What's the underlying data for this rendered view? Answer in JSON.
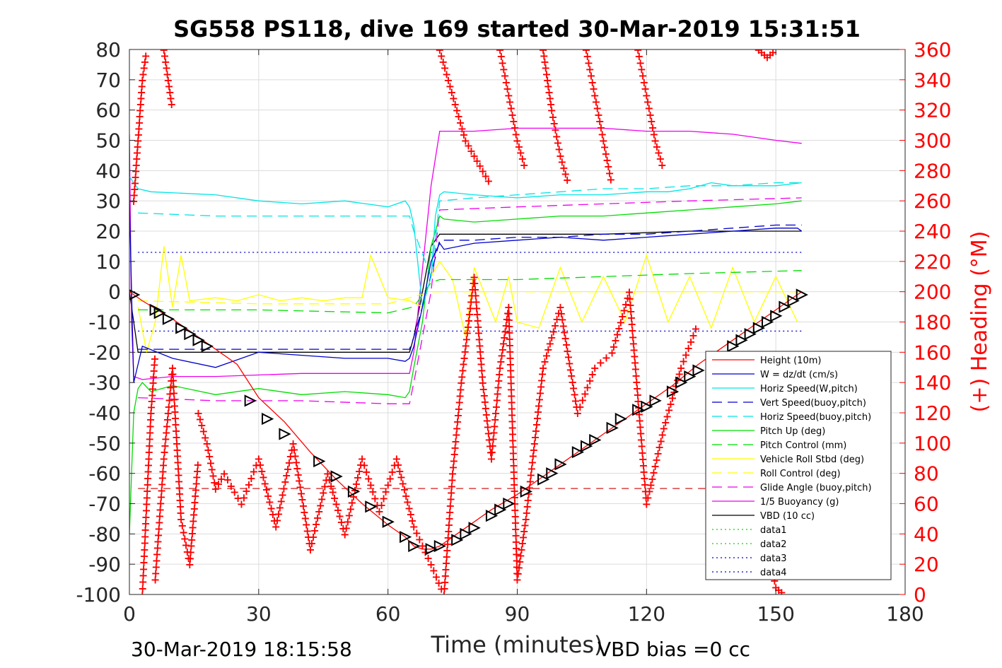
{
  "chart_data": {
    "type": "line",
    "title": "SG558 PS118, dive 169 started 30-Mar-2019 15:31:51",
    "xlabel": "Time (minutes)",
    "ylabel_right": "(+) Heading (°M)",
    "footer_left": "30-Mar-2019 18:15:58",
    "footer_right": "VBD bias =0 cc",
    "xlim": [
      0,
      180
    ],
    "ylim": [
      -100,
      80
    ],
    "y2lim": [
      0,
      360
    ],
    "x_ticks": [
      "0",
      "30",
      "60",
      "90",
      "120",
      "150",
      "180"
    ],
    "y_ticks": [
      "80",
      "70",
      "60",
      "50",
      "40",
      "30",
      "20",
      "10",
      "0",
      "-10",
      "-20",
      "-30",
      "-40",
      "-50",
      "-60",
      "-70",
      "-80",
      "-90",
      "-100"
    ],
    "y2_ticks": [
      "360",
      "340",
      "320",
      "300",
      "280",
      "260",
      "240",
      "220",
      "200",
      "180",
      "160",
      "140",
      "120",
      "100",
      "80",
      "60",
      "40",
      "20",
      "0"
    ],
    "grid": true,
    "legend_position": "bottom-right",
    "legend": [
      {
        "label": "Height (10m)",
        "color": "#ff0000",
        "dash": ""
      },
      {
        "label": "W = dz/dt (cm/s)",
        "color": "#0000cc",
        "dash": ""
      },
      {
        "label": "Horiz Speed(W,pitch)",
        "color": "#00e5e5",
        "dash": ""
      },
      {
        "label": "Vert Speed(buoy,pitch)",
        "color": "#0000cc",
        "dash": "14,8"
      },
      {
        "label": "Horiz Speed(buoy,pitch)",
        "color": "#00e5e5",
        "dash": "14,8"
      },
      {
        "label": "Pitch Up (deg)",
        "color": "#00dd00",
        "dash": ""
      },
      {
        "label": "Pitch Control (mm)",
        "color": "#00dd00",
        "dash": "14,8"
      },
      {
        "label": "Vehicle Roll Stbd (deg)",
        "color": "#ffff00",
        "dash": ""
      },
      {
        "label": "Roll Control (deg)",
        "color": "#ffff00",
        "dash": "14,8"
      },
      {
        "label": "Glide Angle (buoy,pitch)",
        "color": "#ee00ee",
        "dash": "14,8"
      },
      {
        "label": "1/5 Buoyancy (g)",
        "color": "#ee00ee",
        "dash": ""
      },
      {
        "label": "VBD (10 cc)",
        "color": "#000000",
        "dash": ""
      },
      {
        "label": "data1",
        "color": "#00dd00",
        "dash": "2,4"
      },
      {
        "label": "data2",
        "color": "#00dd00",
        "dash": "2,4"
      },
      {
        "label": "data3",
        "color": "#0000cc",
        "dash": "2,4"
      },
      {
        "label": "data4",
        "color": "#0000cc",
        "dash": "2,4"
      }
    ],
    "series": [
      {
        "name": "Height (10m)",
        "color": "#ff0000",
        "dash": "",
        "x": [
          0,
          1,
          3,
          10,
          17,
          25,
          30,
          36,
          42,
          48,
          54,
          60,
          64,
          66,
          68,
          70,
          72,
          78,
          84,
          90,
          96,
          102,
          108,
          114,
          120,
          126,
          132,
          138,
          144,
          150,
          155,
          156
        ],
        "y": [
          0,
          -1,
          -3,
          -9,
          -16,
          -24,
          -35,
          -43,
          -53,
          -62,
          -70,
          -77,
          -81,
          -84,
          -85,
          -85,
          -84,
          -78,
          -72,
          -67,
          -61,
          -55,
          -49,
          -43,
          -37,
          -31,
          -24,
          -18,
          -12,
          -6,
          -1,
          0
        ]
      },
      {
        "name": "W = dz/dt (cm/s)",
        "color": "#0000cc",
        "dash": "",
        "x": [
          0,
          1,
          3,
          10,
          20,
          30,
          40,
          50,
          60,
          64,
          65,
          66,
          68,
          70,
          72,
          73,
          80,
          90,
          100,
          110,
          120,
          130,
          140,
          150,
          155,
          156
        ],
        "y": [
          30,
          -30,
          -18,
          -22,
          -25,
          -20,
          -21,
          -22,
          -22,
          -23,
          -22,
          -18,
          -5,
          10,
          16,
          14,
          16,
          17,
          18,
          17,
          18,
          19,
          20,
          21,
          21,
          20
        ]
      },
      {
        "name": "Horiz Speed(W,pitch)",
        "color": "#00e5e5",
        "dash": "",
        "x": [
          0,
          2,
          5,
          20,
          30,
          40,
          50,
          60,
          64,
          65,
          66,
          68,
          70,
          71,
          72,
          73,
          80,
          90,
          100,
          110,
          120,
          125,
          130,
          135,
          140,
          150,
          156
        ],
        "y": [
          38,
          34,
          33,
          32,
          30,
          29,
          30,
          28,
          30,
          28,
          22,
          -5,
          5,
          25,
          32,
          33,
          32,
          31,
          32,
          32,
          33,
          33,
          34,
          36,
          35,
          35,
          36
        ]
      },
      {
        "name": "Vert Speed(buoy,pitch)",
        "color": "#0000cc",
        "dash": "14,8",
        "x": [
          2,
          65,
          66,
          69,
          72,
          80,
          90,
          100,
          110,
          120,
          130,
          140,
          150,
          156
        ],
        "y": [
          -19,
          -19,
          -15,
          0,
          17,
          17,
          18,
          18,
          19,
          19,
          20,
          21,
          22,
          22
        ]
      },
      {
        "name": "Horiz Speed(buoy,pitch)",
        "color": "#00e5e5",
        "dash": "14,8",
        "x": [
          2,
          20,
          40,
          60,
          65,
          66,
          70,
          72,
          80,
          90,
          100,
          110,
          120,
          130,
          140,
          150,
          156
        ],
        "y": [
          26,
          25,
          25,
          25,
          25,
          20,
          5,
          30,
          31,
          32,
          33,
          34,
          34,
          35,
          35,
          36,
          36
        ]
      },
      {
        "name": "Pitch Up (deg)",
        "color": "#00dd00",
        "dash": "",
        "x": [
          0,
          1,
          2,
          3,
          5,
          10,
          20,
          30,
          40,
          50,
          60,
          64,
          65,
          66,
          68,
          70,
          72,
          73,
          80,
          90,
          100,
          110,
          120,
          130,
          140,
          150,
          156
        ],
        "y": [
          -80,
          -40,
          -32,
          -30,
          -33,
          -31,
          -34,
          -32,
          -34,
          -33,
          -34,
          -35,
          -33,
          -25,
          -10,
          15,
          25,
          24,
          23,
          24,
          25,
          25,
          26,
          27,
          28,
          29,
          30
        ]
      },
      {
        "name": "Pitch Control (mm)",
        "color": "#00dd00",
        "dash": "14,8",
        "x": [
          2,
          30,
          60,
          66,
          70,
          72,
          90,
          110,
          130,
          156
        ],
        "y": [
          -6,
          -6,
          -7,
          -5,
          3,
          4,
          4,
          5,
          6,
          7
        ]
      },
      {
        "name": "Vehicle Roll Stbd (deg)",
        "color": "#ffff00",
        "dash": "",
        "x": [
          2,
          4,
          6,
          8,
          10,
          12,
          14,
          20,
          25,
          30,
          35,
          40,
          45,
          50,
          54,
          56,
          60,
          65,
          68,
          70,
          72,
          75,
          78,
          80,
          85,
          88,
          90,
          95,
          100,
          105,
          110,
          115,
          120,
          125,
          130,
          135,
          140,
          145,
          150,
          155
        ],
        "y": [
          -5,
          -20,
          -10,
          15,
          -5,
          12,
          -3,
          -2,
          -3,
          -1,
          -3,
          -2,
          -3,
          -2,
          -2,
          12,
          -2,
          -3,
          -5,
          5,
          10,
          4,
          -15,
          8,
          -10,
          5,
          -10,
          -12,
          8,
          -10,
          5,
          -10,
          12,
          -10,
          5,
          -12,
          8,
          -10,
          5,
          -10
        ]
      },
      {
        "name": "Roll Control (deg)",
        "color": "#ffff00",
        "dash": "14,8",
        "x": [
          2,
          30,
          60,
          70,
          90,
          110,
          130,
          156
        ],
        "y": [
          -3,
          -4,
          -4,
          0,
          0,
          0,
          0,
          0
        ]
      },
      {
        "name": "Glide Angle (buoy,pitch)",
        "color": "#ee00ee",
        "dash": "14,8",
        "x": [
          2,
          20,
          40,
          60,
          65,
          66,
          70,
          72,
          90,
          110,
          130,
          156
        ],
        "y": [
          -35,
          -36,
          -36,
          -37,
          -37,
          -30,
          0,
          27,
          28,
          29,
          30,
          31
        ]
      },
      {
        "name": "1/5 Buoyancy (g)",
        "color": "#ee00ee",
        "dash": "",
        "x": [
          0,
          0.5,
          1,
          3,
          10,
          20,
          40,
          60,
          65,
          66,
          70,
          72,
          80,
          90,
          100,
          110,
          120,
          130,
          140,
          150,
          156
        ],
        "y": [
          52,
          -10,
          -28,
          -29,
          -28,
          -28,
          -27,
          -27,
          -27,
          -20,
          35,
          53,
          53,
          54,
          54,
          54,
          53,
          53,
          52,
          50,
          49
        ]
      },
      {
        "name": "VBD (10 cc)",
        "color": "#000000",
        "dash": "",
        "x": [
          0,
          2,
          10,
          20,
          40,
          60,
          65,
          66,
          68,
          70,
          72,
          90,
          110,
          130,
          150,
          156
        ],
        "y": [
          0,
          -20,
          -20,
          -20,
          -20,
          -20,
          -20,
          -15,
          0,
          15,
          19,
          19,
          19,
          20,
          20,
          20
        ]
      },
      {
        "name": "data1",
        "color": "#00dd00",
        "dash": "2,4",
        "x": [],
        "y": []
      },
      {
        "name": "data2",
        "color": "#00dd00",
        "dash": "2,4",
        "x": [],
        "y": []
      },
      {
        "name": "data3",
        "color": "#0000cc",
        "dash": "2,4",
        "x": [
          2,
          156
        ],
        "y": [
          13,
          13
        ]
      },
      {
        "name": "data4",
        "color": "#0000cc",
        "dash": "2,4",
        "x": [
          2,
          156
        ],
        "y": [
          -13,
          -13
        ]
      }
    ],
    "ref_line": {
      "color": "#cc0000",
      "dash": "10,8",
      "x": [
        2,
        156
      ],
      "y": [
        -65,
        -65
      ]
    },
    "triangle_markers": {
      "color": "#000000",
      "x": [
        1,
        6,
        7,
        9,
        12,
        14,
        16,
        18,
        28,
        32,
        36,
        44,
        48,
        52,
        56,
        60,
        64,
        66,
        70,
        72,
        76,
        78,
        80,
        84,
        86,
        88,
        92,
        96,
        98,
        100,
        104,
        106,
        108,
        112,
        114,
        118,
        120,
        122,
        126,
        128,
        130,
        132,
        136,
        140,
        142,
        144,
        146,
        148,
        150,
        152,
        154,
        156
      ],
      "y": [
        -1,
        -6,
        -7,
        -9,
        -12,
        -14,
        -16,
        -18,
        -36,
        -42,
        -47,
        -56,
        -61,
        -66,
        -71,
        -76,
        -81,
        -84,
        -85,
        -84,
        -82,
        -80,
        -78,
        -74,
        -72,
        -70,
        -66,
        -62,
        -60,
        -57,
        -53,
        -51,
        -49,
        -45,
        -42,
        -39,
        -38,
        -36,
        -33,
        -30,
        -28,
        -26,
        -22,
        -18,
        -16,
        -14,
        -12,
        -10,
        -8,
        -5,
        -3,
        -1
      ]
    },
    "heading_plus": {
      "color": "#ff0000",
      "segments": [
        {
          "x": [
            1,
            2,
            3,
            4
          ],
          "y": [
            260,
            300,
            340,
            360
          ]
        },
        {
          "x": [
            8,
            9,
            10
          ],
          "y": [
            360,
            340,
            320
          ]
        },
        {
          "x": [
            3,
            4,
            5,
            6
          ],
          "y": [
            0,
            60,
            120,
            160
          ]
        },
        {
          "x": [
            6,
            8,
            10,
            12,
            14,
            16
          ],
          "y": [
            10,
            90,
            150,
            50,
            20,
            90
          ]
        },
        {
          "x": [
            16,
            18,
            20,
            22,
            26,
            30,
            34,
            38,
            42,
            46,
            50,
            54,
            58,
            62,
            66,
            70,
            73
          ],
          "y": [
            120,
            100,
            70,
            80,
            60,
            90,
            45,
            100,
            30,
            80,
            40,
            90,
            55,
            90,
            45,
            20,
            0
          ]
        },
        {
          "x": [
            73,
            75,
            77,
            80
          ],
          "y": [
            0,
            80,
            140,
            210
          ]
        },
        {
          "x": [
            80,
            82,
            84,
            86,
            88,
            90,
            92,
            96,
            100,
            104,
            108,
            112,
            116,
            120,
            124,
            128,
            132
          ],
          "y": [
            210,
            140,
            90,
            150,
            190,
            10,
            50,
            150,
            190,
            120,
            150,
            160,
            200,
            60,
            110,
            150,
            180
          ]
        },
        {
          "x": [
            142,
            146,
            150,
            152
          ],
          "y": [
            20,
            60,
            5,
            0
          ]
        },
        {
          "x": [
            72,
            74,
            76,
            78,
            80,
            82,
            84
          ],
          "y": [
            360,
            340,
            320,
            300,
            290,
            280,
            270
          ]
        },
        {
          "x": [
            86,
            88,
            90,
            92
          ],
          "y": [
            360,
            330,
            300,
            280
          ]
        },
        {
          "x": [
            96,
            98,
            100,
            102
          ],
          "y": [
            360,
            320,
            290,
            270
          ]
        },
        {
          "x": [
            106,
            108,
            110,
            112
          ],
          "y": [
            360,
            330,
            300,
            270
          ]
        },
        {
          "x": [
            118,
            120,
            122,
            124
          ],
          "y": [
            360,
            330,
            300,
            280
          ]
        },
        {
          "x": [
            146,
            148,
            150
          ],
          "y": [
            360,
            355,
            360
          ]
        }
      ]
    }
  }
}
